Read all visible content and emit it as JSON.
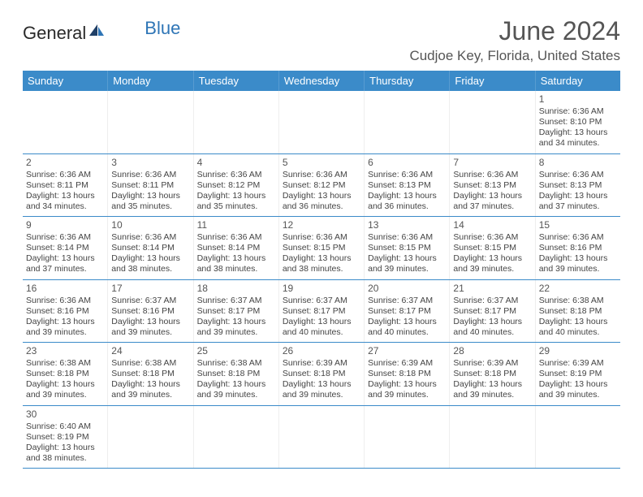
{
  "branding": {
    "logo_part1": "General",
    "logo_part2": "Blue",
    "logo_color_dark": "#2a2a2a",
    "logo_color_blue": "#2e75b6"
  },
  "header": {
    "month_title": "June 2024",
    "location": "Cudjoe Key, Florida, United States"
  },
  "colors": {
    "header_bar": "#3b8bc9",
    "header_text": "#ffffff",
    "grid_line": "#3b8bc9",
    "cell_divider": "#eeeeee",
    "text": "#444444",
    "title_text": "#555555",
    "background": "#ffffff"
  },
  "typography": {
    "month_title_fontsize": 32,
    "location_fontsize": 17,
    "day_header_fontsize": 13,
    "daynum_fontsize": 12,
    "body_fontsize": 10.5
  },
  "day_names": [
    "Sunday",
    "Monday",
    "Tuesday",
    "Wednesday",
    "Thursday",
    "Friday",
    "Saturday"
  ],
  "weeks": [
    [
      null,
      null,
      null,
      null,
      null,
      null,
      {
        "day": "1",
        "sunrise": "Sunrise: 6:36 AM",
        "sunset": "Sunset: 8:10 PM",
        "daylight": "Daylight: 13 hours and 34 minutes."
      }
    ],
    [
      {
        "day": "2",
        "sunrise": "Sunrise: 6:36 AM",
        "sunset": "Sunset: 8:11 PM",
        "daylight": "Daylight: 13 hours and 34 minutes."
      },
      {
        "day": "3",
        "sunrise": "Sunrise: 6:36 AM",
        "sunset": "Sunset: 8:11 PM",
        "daylight": "Daylight: 13 hours and 35 minutes."
      },
      {
        "day": "4",
        "sunrise": "Sunrise: 6:36 AM",
        "sunset": "Sunset: 8:12 PM",
        "daylight": "Daylight: 13 hours and 35 minutes."
      },
      {
        "day": "5",
        "sunrise": "Sunrise: 6:36 AM",
        "sunset": "Sunset: 8:12 PM",
        "daylight": "Daylight: 13 hours and 36 minutes."
      },
      {
        "day": "6",
        "sunrise": "Sunrise: 6:36 AM",
        "sunset": "Sunset: 8:13 PM",
        "daylight": "Daylight: 13 hours and 36 minutes."
      },
      {
        "day": "7",
        "sunrise": "Sunrise: 6:36 AM",
        "sunset": "Sunset: 8:13 PM",
        "daylight": "Daylight: 13 hours and 37 minutes."
      },
      {
        "day": "8",
        "sunrise": "Sunrise: 6:36 AM",
        "sunset": "Sunset: 8:13 PM",
        "daylight": "Daylight: 13 hours and 37 minutes."
      }
    ],
    [
      {
        "day": "9",
        "sunrise": "Sunrise: 6:36 AM",
        "sunset": "Sunset: 8:14 PM",
        "daylight": "Daylight: 13 hours and 37 minutes."
      },
      {
        "day": "10",
        "sunrise": "Sunrise: 6:36 AM",
        "sunset": "Sunset: 8:14 PM",
        "daylight": "Daylight: 13 hours and 38 minutes."
      },
      {
        "day": "11",
        "sunrise": "Sunrise: 6:36 AM",
        "sunset": "Sunset: 8:14 PM",
        "daylight": "Daylight: 13 hours and 38 minutes."
      },
      {
        "day": "12",
        "sunrise": "Sunrise: 6:36 AM",
        "sunset": "Sunset: 8:15 PM",
        "daylight": "Daylight: 13 hours and 38 minutes."
      },
      {
        "day": "13",
        "sunrise": "Sunrise: 6:36 AM",
        "sunset": "Sunset: 8:15 PM",
        "daylight": "Daylight: 13 hours and 39 minutes."
      },
      {
        "day": "14",
        "sunrise": "Sunrise: 6:36 AM",
        "sunset": "Sunset: 8:15 PM",
        "daylight": "Daylight: 13 hours and 39 minutes."
      },
      {
        "day": "15",
        "sunrise": "Sunrise: 6:36 AM",
        "sunset": "Sunset: 8:16 PM",
        "daylight": "Daylight: 13 hours and 39 minutes."
      }
    ],
    [
      {
        "day": "16",
        "sunrise": "Sunrise: 6:36 AM",
        "sunset": "Sunset: 8:16 PM",
        "daylight": "Daylight: 13 hours and 39 minutes."
      },
      {
        "day": "17",
        "sunrise": "Sunrise: 6:37 AM",
        "sunset": "Sunset: 8:16 PM",
        "daylight": "Daylight: 13 hours and 39 minutes."
      },
      {
        "day": "18",
        "sunrise": "Sunrise: 6:37 AM",
        "sunset": "Sunset: 8:17 PM",
        "daylight": "Daylight: 13 hours and 39 minutes."
      },
      {
        "day": "19",
        "sunrise": "Sunrise: 6:37 AM",
        "sunset": "Sunset: 8:17 PM",
        "daylight": "Daylight: 13 hours and 40 minutes."
      },
      {
        "day": "20",
        "sunrise": "Sunrise: 6:37 AM",
        "sunset": "Sunset: 8:17 PM",
        "daylight": "Daylight: 13 hours and 40 minutes."
      },
      {
        "day": "21",
        "sunrise": "Sunrise: 6:37 AM",
        "sunset": "Sunset: 8:17 PM",
        "daylight": "Daylight: 13 hours and 40 minutes."
      },
      {
        "day": "22",
        "sunrise": "Sunrise: 6:38 AM",
        "sunset": "Sunset: 8:18 PM",
        "daylight": "Daylight: 13 hours and 40 minutes."
      }
    ],
    [
      {
        "day": "23",
        "sunrise": "Sunrise: 6:38 AM",
        "sunset": "Sunset: 8:18 PM",
        "daylight": "Daylight: 13 hours and 39 minutes."
      },
      {
        "day": "24",
        "sunrise": "Sunrise: 6:38 AM",
        "sunset": "Sunset: 8:18 PM",
        "daylight": "Daylight: 13 hours and 39 minutes."
      },
      {
        "day": "25",
        "sunrise": "Sunrise: 6:38 AM",
        "sunset": "Sunset: 8:18 PM",
        "daylight": "Daylight: 13 hours and 39 minutes."
      },
      {
        "day": "26",
        "sunrise": "Sunrise: 6:39 AM",
        "sunset": "Sunset: 8:18 PM",
        "daylight": "Daylight: 13 hours and 39 minutes."
      },
      {
        "day": "27",
        "sunrise": "Sunrise: 6:39 AM",
        "sunset": "Sunset: 8:18 PM",
        "daylight": "Daylight: 13 hours and 39 minutes."
      },
      {
        "day": "28",
        "sunrise": "Sunrise: 6:39 AM",
        "sunset": "Sunset: 8:18 PM",
        "daylight": "Daylight: 13 hours and 39 minutes."
      },
      {
        "day": "29",
        "sunrise": "Sunrise: 6:39 AM",
        "sunset": "Sunset: 8:19 PM",
        "daylight": "Daylight: 13 hours and 39 minutes."
      }
    ],
    [
      {
        "day": "30",
        "sunrise": "Sunrise: 6:40 AM",
        "sunset": "Sunset: 8:19 PM",
        "daylight": "Daylight: 13 hours and 38 minutes."
      },
      null,
      null,
      null,
      null,
      null,
      null
    ]
  ]
}
